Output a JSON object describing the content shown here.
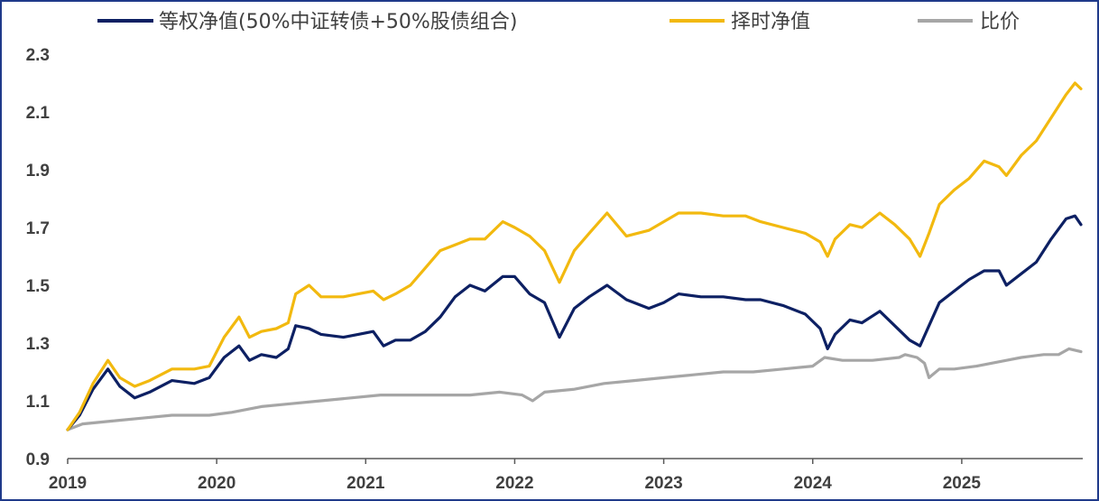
{
  "chart_data": {
    "type": "line",
    "title": "",
    "xlabel": "",
    "ylabel": "",
    "ylim": [
      0.9,
      2.3
    ],
    "yticks": [
      "0.9",
      "1.1",
      "1.3",
      "1.5",
      "1.7",
      "1.9",
      "2.1",
      "2.3"
    ],
    "xlim": [
      2019.0,
      2025.8
    ],
    "xticks": [
      "2019",
      "2020",
      "2021",
      "2022",
      "2023",
      "2024",
      "2025"
    ],
    "grid": false,
    "legend_position": "top",
    "series": [
      {
        "name": "等权净值(50%中证转债+50%股债组合)",
        "color": "#0d2063",
        "points": [
          [
            2019.0,
            1.0
          ],
          [
            2019.08,
            1.05
          ],
          [
            2019.17,
            1.14
          ],
          [
            2019.27,
            1.21
          ],
          [
            2019.35,
            1.15
          ],
          [
            2019.45,
            1.11
          ],
          [
            2019.55,
            1.13
          ],
          [
            2019.7,
            1.17
          ],
          [
            2019.85,
            1.16
          ],
          [
            2019.95,
            1.18
          ],
          [
            2020.05,
            1.25
          ],
          [
            2020.15,
            1.29
          ],
          [
            2020.22,
            1.24
          ],
          [
            2020.3,
            1.26
          ],
          [
            2020.4,
            1.25
          ],
          [
            2020.48,
            1.28
          ],
          [
            2020.53,
            1.36
          ],
          [
            2020.62,
            1.35
          ],
          [
            2020.7,
            1.33
          ],
          [
            2020.85,
            1.32
          ],
          [
            2020.95,
            1.33
          ],
          [
            2021.05,
            1.34
          ],
          [
            2021.12,
            1.29
          ],
          [
            2021.2,
            1.31
          ],
          [
            2021.3,
            1.31
          ],
          [
            2021.4,
            1.34
          ],
          [
            2021.5,
            1.39
          ],
          [
            2021.6,
            1.46
          ],
          [
            2021.7,
            1.5
          ],
          [
            2021.8,
            1.48
          ],
          [
            2021.92,
            1.53
          ],
          [
            2022.0,
            1.53
          ],
          [
            2022.1,
            1.47
          ],
          [
            2022.2,
            1.44
          ],
          [
            2022.3,
            1.32
          ],
          [
            2022.4,
            1.42
          ],
          [
            2022.5,
            1.46
          ],
          [
            2022.62,
            1.5
          ],
          [
            2022.75,
            1.45
          ],
          [
            2022.9,
            1.42
          ],
          [
            2023.0,
            1.44
          ],
          [
            2023.1,
            1.47
          ],
          [
            2023.25,
            1.46
          ],
          [
            2023.4,
            1.46
          ],
          [
            2023.55,
            1.45
          ],
          [
            2023.65,
            1.45
          ],
          [
            2023.8,
            1.43
          ],
          [
            2023.95,
            1.4
          ],
          [
            2024.05,
            1.35
          ],
          [
            2024.1,
            1.28
          ],
          [
            2024.15,
            1.33
          ],
          [
            2024.25,
            1.38
          ],
          [
            2024.33,
            1.37
          ],
          [
            2024.45,
            1.41
          ],
          [
            2024.55,
            1.36
          ],
          [
            2024.65,
            1.31
          ],
          [
            2024.72,
            1.29
          ],
          [
            2024.78,
            1.36
          ],
          [
            2024.85,
            1.44
          ],
          [
            2024.95,
            1.48
          ],
          [
            2025.05,
            1.52
          ],
          [
            2025.15,
            1.55
          ],
          [
            2025.25,
            1.55
          ],
          [
            2025.3,
            1.5
          ],
          [
            2025.4,
            1.54
          ],
          [
            2025.5,
            1.58
          ],
          [
            2025.6,
            1.66
          ],
          [
            2025.7,
            1.73
          ],
          [
            2025.76,
            1.74
          ],
          [
            2025.8,
            1.71
          ]
        ]
      },
      {
        "name": "择时净值",
        "color": "#f2b90f",
        "points": [
          [
            2019.0,
            1.0
          ],
          [
            2019.08,
            1.06
          ],
          [
            2019.17,
            1.16
          ],
          [
            2019.27,
            1.24
          ],
          [
            2019.35,
            1.18
          ],
          [
            2019.45,
            1.15
          ],
          [
            2019.55,
            1.17
          ],
          [
            2019.7,
            1.21
          ],
          [
            2019.85,
            1.21
          ],
          [
            2019.95,
            1.22
          ],
          [
            2020.05,
            1.32
          ],
          [
            2020.15,
            1.39
          ],
          [
            2020.22,
            1.32
          ],
          [
            2020.3,
            1.34
          ],
          [
            2020.4,
            1.35
          ],
          [
            2020.48,
            1.37
          ],
          [
            2020.53,
            1.47
          ],
          [
            2020.62,
            1.5
          ],
          [
            2020.7,
            1.46
          ],
          [
            2020.85,
            1.46
          ],
          [
            2020.95,
            1.47
          ],
          [
            2021.05,
            1.48
          ],
          [
            2021.12,
            1.45
          ],
          [
            2021.2,
            1.47
          ],
          [
            2021.3,
            1.5
          ],
          [
            2021.4,
            1.56
          ],
          [
            2021.5,
            1.62
          ],
          [
            2021.6,
            1.64
          ],
          [
            2021.7,
            1.66
          ],
          [
            2021.8,
            1.66
          ],
          [
            2021.92,
            1.72
          ],
          [
            2022.0,
            1.7
          ],
          [
            2022.1,
            1.67
          ],
          [
            2022.2,
            1.62
          ],
          [
            2022.3,
            1.51
          ],
          [
            2022.4,
            1.62
          ],
          [
            2022.5,
            1.68
          ],
          [
            2022.62,
            1.75
          ],
          [
            2022.75,
            1.67
          ],
          [
            2022.9,
            1.69
          ],
          [
            2023.0,
            1.72
          ],
          [
            2023.1,
            1.75
          ],
          [
            2023.25,
            1.75
          ],
          [
            2023.4,
            1.74
          ],
          [
            2023.55,
            1.74
          ],
          [
            2023.65,
            1.72
          ],
          [
            2023.8,
            1.7
          ],
          [
            2023.95,
            1.68
          ],
          [
            2024.05,
            1.65
          ],
          [
            2024.1,
            1.6
          ],
          [
            2024.15,
            1.66
          ],
          [
            2024.25,
            1.71
          ],
          [
            2024.33,
            1.7
          ],
          [
            2024.45,
            1.75
          ],
          [
            2024.55,
            1.71
          ],
          [
            2024.65,
            1.66
          ],
          [
            2024.72,
            1.6
          ],
          [
            2024.78,
            1.68
          ],
          [
            2024.85,
            1.78
          ],
          [
            2024.95,
            1.83
          ],
          [
            2025.05,
            1.87
          ],
          [
            2025.15,
            1.93
          ],
          [
            2025.25,
            1.91
          ],
          [
            2025.3,
            1.88
          ],
          [
            2025.4,
            1.95
          ],
          [
            2025.5,
            2.0
          ],
          [
            2025.6,
            2.08
          ],
          [
            2025.7,
            2.16
          ],
          [
            2025.76,
            2.2
          ],
          [
            2025.8,
            2.18
          ]
        ]
      },
      {
        "name": "比价",
        "color": "#a6a6a6",
        "points": [
          [
            2019.0,
            1.0
          ],
          [
            2019.1,
            1.02
          ],
          [
            2019.3,
            1.03
          ],
          [
            2019.5,
            1.04
          ],
          [
            2019.7,
            1.05
          ],
          [
            2019.95,
            1.05
          ],
          [
            2020.1,
            1.06
          ],
          [
            2020.3,
            1.08
          ],
          [
            2020.5,
            1.09
          ],
          [
            2020.7,
            1.1
          ],
          [
            2020.9,
            1.11
          ],
          [
            2021.1,
            1.12
          ],
          [
            2021.3,
            1.12
          ],
          [
            2021.5,
            1.12
          ],
          [
            2021.7,
            1.12
          ],
          [
            2021.9,
            1.13
          ],
          [
            2022.05,
            1.12
          ],
          [
            2022.12,
            1.1
          ],
          [
            2022.2,
            1.13
          ],
          [
            2022.4,
            1.14
          ],
          [
            2022.6,
            1.16
          ],
          [
            2022.8,
            1.17
          ],
          [
            2023.0,
            1.18
          ],
          [
            2023.2,
            1.19
          ],
          [
            2023.4,
            1.2
          ],
          [
            2023.6,
            1.2
          ],
          [
            2023.8,
            1.21
          ],
          [
            2024.0,
            1.22
          ],
          [
            2024.08,
            1.25
          ],
          [
            2024.2,
            1.24
          ],
          [
            2024.4,
            1.24
          ],
          [
            2024.58,
            1.25
          ],
          [
            2024.62,
            1.26
          ],
          [
            2024.7,
            1.25
          ],
          [
            2024.75,
            1.23
          ],
          [
            2024.78,
            1.18
          ],
          [
            2024.85,
            1.21
          ],
          [
            2024.95,
            1.21
          ],
          [
            2025.1,
            1.22
          ],
          [
            2025.3,
            1.24
          ],
          [
            2025.4,
            1.25
          ],
          [
            2025.55,
            1.26
          ],
          [
            2025.65,
            1.26
          ],
          [
            2025.72,
            1.28
          ],
          [
            2025.8,
            1.27
          ]
        ]
      }
    ]
  }
}
